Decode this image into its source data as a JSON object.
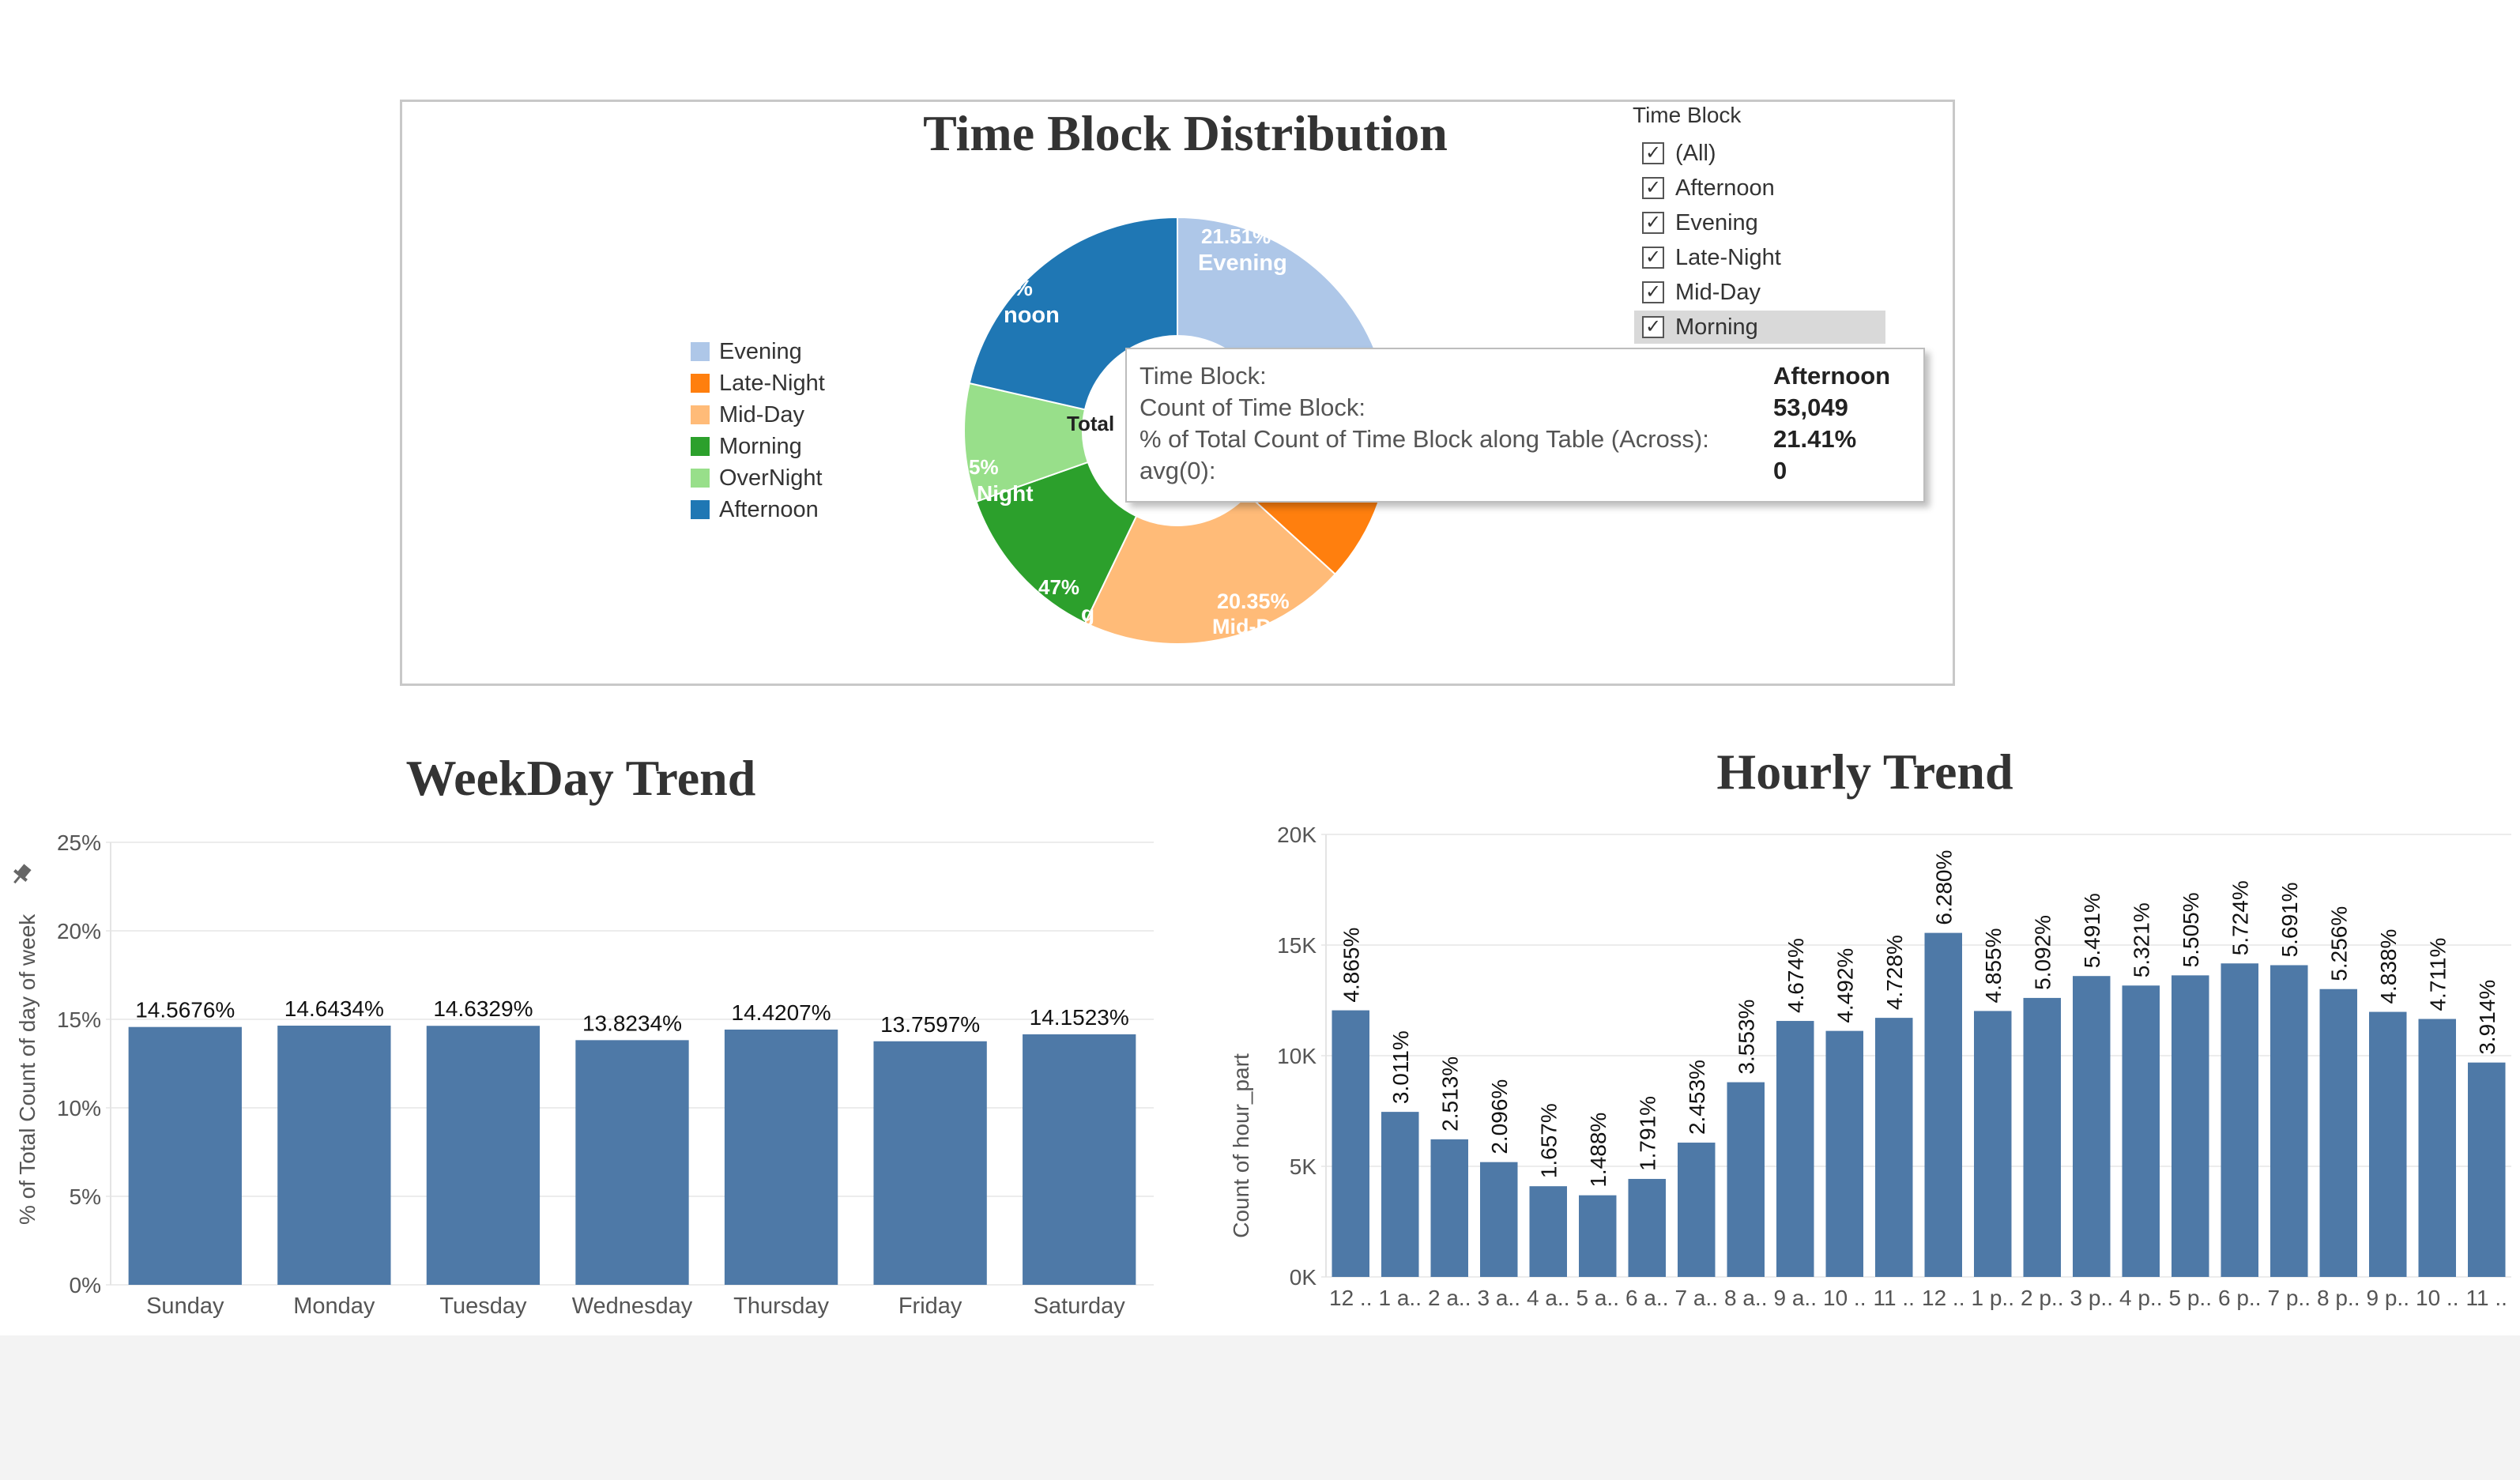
{
  "pie_panel": {
    "legend": [
      {
        "label": "Evening",
        "color": "#aec7e8"
      },
      {
        "label": "Late-Night",
        "color": "#ff7f0e"
      },
      {
        "label": "Mid-Day",
        "color": "#ffbb78"
      },
      {
        "label": "Morning",
        "color": "#2ca02c"
      },
      {
        "label": "OverNight",
        "color": "#98df8a"
      },
      {
        "label": "Afternoon",
        "color": "#1f77b4"
      }
    ],
    "center_label": "Total",
    "slice_labels": {
      "evening_pct": "21.51%",
      "evening_name": "Evening",
      "afternoon_pct": "%",
      "afternoon_name": "noon",
      "overnight_pct": "5%",
      "overnight_name": "Night",
      "morning_pct": "47%",
      "morning_name": "g",
      "midday_pct": "20.35%",
      "midday_name": "Mid-D"
    }
  },
  "filter": {
    "title": "Time Block",
    "options": [
      {
        "label": "(All)",
        "checked": true
      },
      {
        "label": "Afternoon",
        "checked": true
      },
      {
        "label": "Evening",
        "checked": true
      },
      {
        "label": "Late-Night",
        "checked": true
      },
      {
        "label": "Mid-Day",
        "checked": true
      },
      {
        "label": "Morning",
        "checked": true
      }
    ],
    "check_glyph": "✓"
  },
  "tooltip": {
    "rows": [
      {
        "label": "Time Block:",
        "value": "Afternoon"
      },
      {
        "label": "Count of Time Block:",
        "value": "53,049"
      },
      {
        "label": "% of Total Count of Time Block along Table (Across):",
        "value": "21.41%"
      },
      {
        "label": "avg(0):",
        "value": "0"
      }
    ]
  },
  "chart_data": [
    {
      "type": "pie",
      "title": "Time Block Distribution",
      "donut": true,
      "categories": [
        "Evening",
        "Late-Night",
        "Mid-Day",
        "Morning",
        "OverNight",
        "Afternoon"
      ],
      "values": [
        21.51,
        15.2,
        20.35,
        12.47,
        8.95,
        21.41
      ],
      "colors": [
        "#aec7e8",
        "#ff7f0e",
        "#ffbb78",
        "#2ca02c",
        "#98df8a",
        "#1f77b4"
      ],
      "legend_position": "left"
    },
    {
      "type": "bar",
      "title": "WeekDay Trend",
      "xlabel": "",
      "ylabel": "% of Total Count of day of week",
      "categories": [
        "Sunday",
        "Monday",
        "Tuesday",
        "Wednesday",
        "Thursday",
        "Friday",
        "Saturday"
      ],
      "values": [
        14.5676,
        14.6434,
        14.6329,
        13.8234,
        14.4207,
        13.7597,
        14.1523
      ],
      "data_labels": [
        "14.5676%",
        "14.6434%",
        "14.6329%",
        "13.8234%",
        "14.4207%",
        "13.7597%",
        "14.1523%"
      ],
      "ylim": [
        0,
        25
      ],
      "yticks": [
        "0%",
        "5%",
        "10%",
        "15%",
        "20%",
        "25%"
      ],
      "bar_color": "#4e79a7",
      "grid": true
    },
    {
      "type": "bar",
      "title": "Hourly Trend",
      "xlabel": "",
      "ylabel": "Count of hour_part",
      "categories": [
        "12 ..",
        "1 a..",
        "2 a..",
        "3 a..",
        "4 a..",
        "5 a..",
        "6 a..",
        "7 a..",
        "8 a..",
        "9 a..",
        "10 ..",
        "11 ..",
        "12 ..",
        "1 p..",
        "2 p..",
        "3 p..",
        "4 p..",
        "5 p..",
        "6 p..",
        "7 p..",
        "8 p..",
        "9 p..",
        "10 ..",
        "11 .."
      ],
      "values": [
        12050,
        7460,
        6220,
        5190,
        4100,
        3690,
        4430,
        6070,
        8800,
        11570,
        11120,
        11710,
        15550,
        12020,
        12610,
        13600,
        13170,
        13630,
        14170,
        14090,
        13010,
        11980,
        11660,
        9690
      ],
      "data_labels": [
        "4.865%",
        "3.011%",
        "2.513%",
        "2.096%",
        "1.657%",
        "1.488%",
        "1.791%",
        "2.453%",
        "3.553%",
        "4.674%",
        "4.492%",
        "4.728%",
        "6.280%",
        "4.855%",
        "5.092%",
        "5.491%",
        "5.321%",
        "5.505%",
        "5.724%",
        "5.691%",
        "5.256%",
        "4.838%",
        "4.711%",
        "3.914%"
      ],
      "ylim": [
        0,
        20000
      ],
      "yticks": [
        "0K",
        "5K",
        "10K",
        "15K",
        "20K"
      ],
      "bar_color": "#4e79a7",
      "grid": true
    }
  ]
}
